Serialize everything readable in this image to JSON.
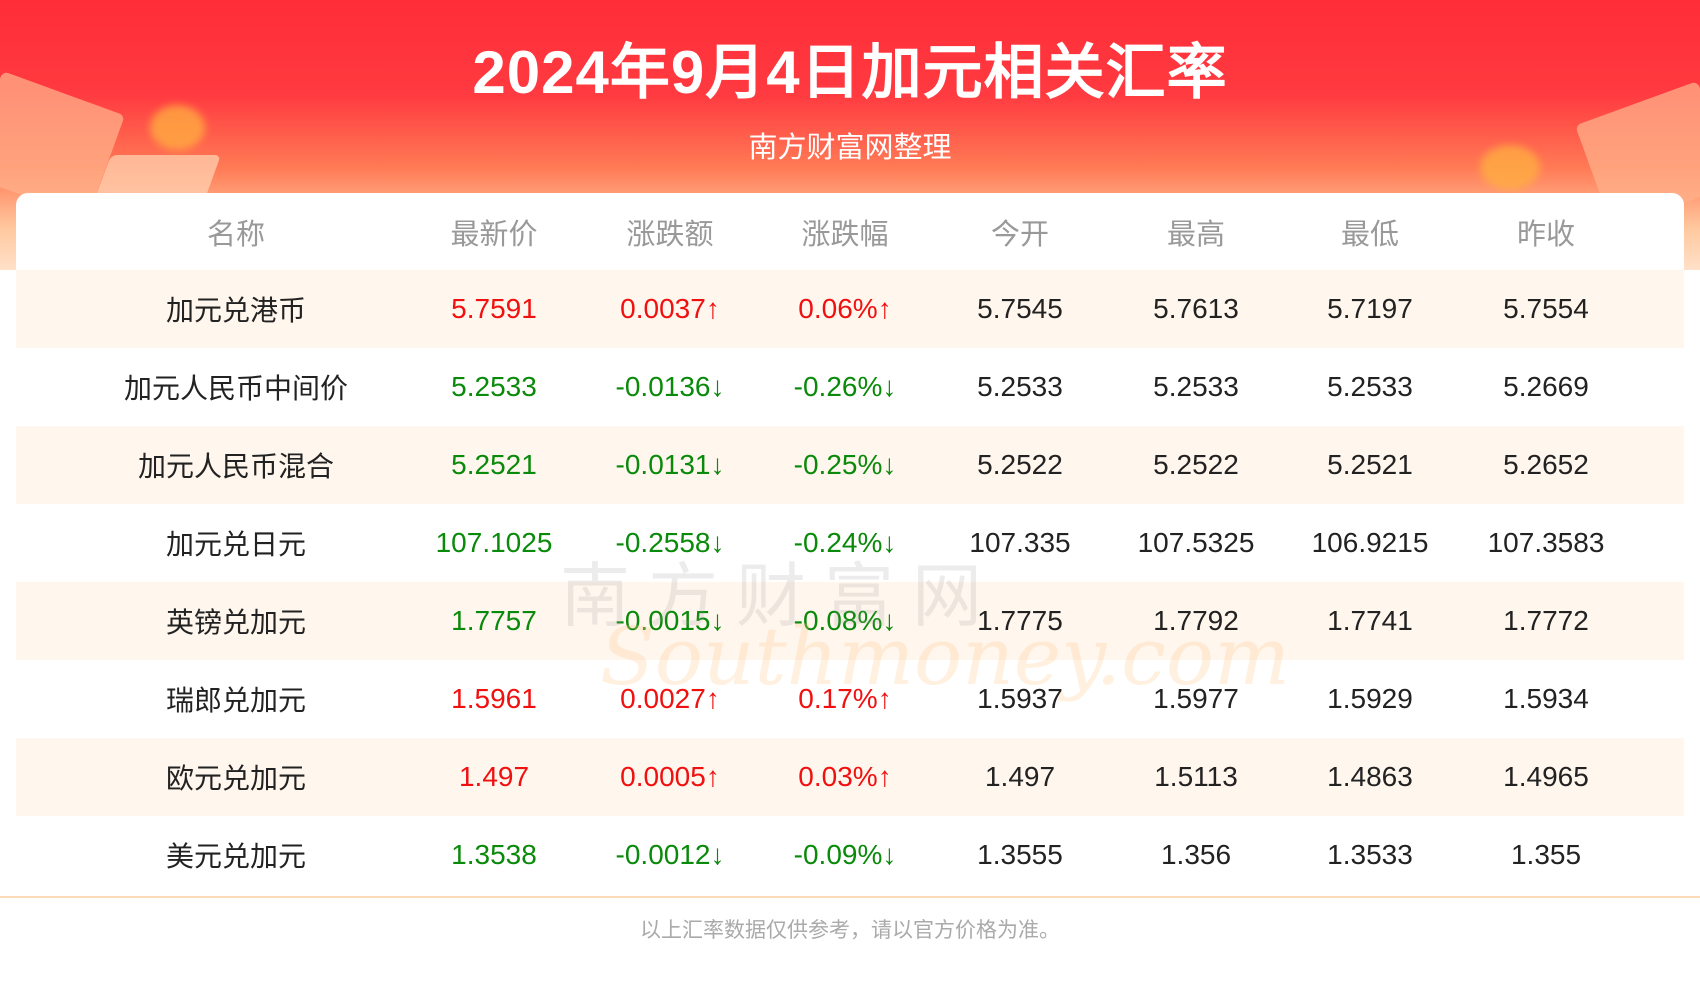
{
  "header": {
    "title": "2024年9月4日加元相关汇率",
    "subtitle": "南方财富网整理"
  },
  "watermark": {
    "cn": "南方财富网",
    "en": "Southmoney.com"
  },
  "table": {
    "columns": [
      "名称",
      "最新价",
      "涨跌额",
      "涨跌幅",
      "今开",
      "最高",
      "最低",
      "昨收"
    ],
    "rows": [
      {
        "name": "加元兑港币",
        "latest": "5.7591",
        "change": "0.0037↑",
        "pct": "0.06%↑",
        "open": "5.7545",
        "high": "5.7613",
        "low": "5.7197",
        "prev": "5.7554",
        "trend": "up"
      },
      {
        "name": "加元人民币中间价",
        "latest": "5.2533",
        "change": "-0.0136↓",
        "pct": "-0.26%↓",
        "open": "5.2533",
        "high": "5.2533",
        "low": "5.2533",
        "prev": "5.2669",
        "trend": "down"
      },
      {
        "name": "加元人民币混合",
        "latest": "5.2521",
        "change": "-0.0131↓",
        "pct": "-0.25%↓",
        "open": "5.2522",
        "high": "5.2522",
        "low": "5.2521",
        "prev": "5.2652",
        "trend": "down"
      },
      {
        "name": "加元兑日元",
        "latest": "107.1025",
        "change": "-0.2558↓",
        "pct": "-0.24%↓",
        "open": "107.335",
        "high": "107.5325",
        "low": "106.9215",
        "prev": "107.3583",
        "trend": "down"
      },
      {
        "name": "英镑兑加元",
        "latest": "1.7757",
        "change": "-0.0015↓",
        "pct": "-0.08%↓",
        "open": "1.7775",
        "high": "1.7792",
        "low": "1.7741",
        "prev": "1.7772",
        "trend": "down"
      },
      {
        "name": "瑞郎兑加元",
        "latest": "1.5961",
        "change": "0.0027↑",
        "pct": "0.17%↑",
        "open": "1.5937",
        "high": "1.5977",
        "low": "1.5929",
        "prev": "1.5934",
        "trend": "up"
      },
      {
        "name": "欧元兑加元",
        "latest": "1.497",
        "change": "0.0005↑",
        "pct": "0.03%↑",
        "open": "1.497",
        "high": "1.5113",
        "low": "1.4863",
        "prev": "1.4965",
        "trend": "up"
      },
      {
        "name": "美元兑加元",
        "latest": "1.3538",
        "change": "-0.0012↓",
        "pct": "-0.09%↓",
        "open": "1.3555",
        "high": "1.356",
        "low": "1.3533",
        "prev": "1.355",
        "trend": "down"
      }
    ]
  },
  "footer": {
    "note": "以上汇率数据仅供参考，请以官方价格为准。"
  },
  "colors": {
    "up": "#f01010",
    "down": "#0a8a0a",
    "banner": "#ff2d38"
  }
}
